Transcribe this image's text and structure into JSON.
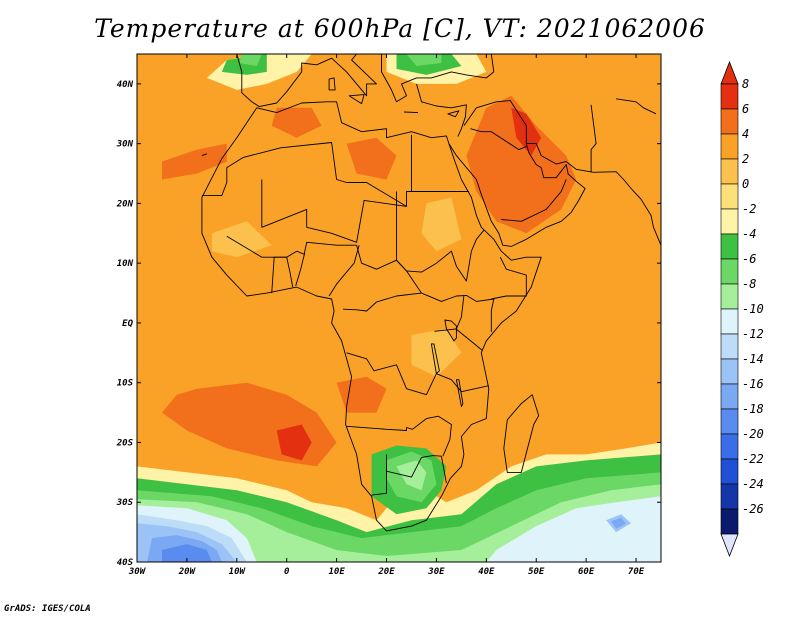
{
  "title": "Temperature at 600hPa [C], VT: 2021062006",
  "credit": "GrADS: IGES/COLA",
  "map": {
    "lon_range": [
      -30,
      75
    ],
    "lat_range": [
      -40,
      45
    ],
    "lon_ticks": [
      {
        "value": -30,
        "label": "30W"
      },
      {
        "value": -20,
        "label": "20W"
      },
      {
        "value": -10,
        "label": "10W"
      },
      {
        "value": 0,
        "label": "0"
      },
      {
        "value": 10,
        "label": "10E"
      },
      {
        "value": 20,
        "label": "20E"
      },
      {
        "value": 30,
        "label": "30E"
      },
      {
        "value": 40,
        "label": "40E"
      },
      {
        "value": 50,
        "label": "50E"
      },
      {
        "value": 60,
        "label": "60E"
      },
      {
        "value": 70,
        "label": "70E"
      }
    ],
    "lat_ticks": [
      {
        "value": 40,
        "label": "40N"
      },
      {
        "value": 30,
        "label": "30N"
      },
      {
        "value": 20,
        "label": "20N"
      },
      {
        "value": 10,
        "label": "10N"
      },
      {
        "value": 0,
        "label": "EQ"
      },
      {
        "value": -10,
        "label": "10S"
      },
      {
        "value": -20,
        "label": "20S"
      },
      {
        "value": -30,
        "label": "30S"
      },
      {
        "value": -40,
        "label": "40S"
      }
    ],
    "colors": {
      "c_m26": "#0a1a6e",
      "c_m24": "#1436a8",
      "c_m22": "#2050d6",
      "c_m20": "#3a6ee8",
      "c_m18": "#5a8cef",
      "c_m16": "#7aa8f2",
      "c_m14": "#9cc3f5",
      "c_m12": "#bcdcf8",
      "c_m10": "#dff3fb",
      "c_m8": "#a5ef9a",
      "c_m6": "#6bd765",
      "c_m4": "#3ec042",
      "c_m2": "#fff3a8",
      "c_0": "#fde07a",
      "c_2": "#fbc14c",
      "c_4": "#f9a227",
      "c_6": "#f2701b",
      "c_8": "#e23010"
    }
  },
  "colorbar": {
    "labels": [
      "8",
      "6",
      "4",
      "2",
      "0",
      "-2",
      "-4",
      "-6",
      "-8",
      "-10",
      "-12",
      "-14",
      "-16",
      "-18",
      "-20",
      "-22",
      "-24",
      "-26"
    ],
    "colors": [
      "#e23010",
      "#f2701b",
      "#f9a227",
      "#fbc14c",
      "#fde07a",
      "#fff3a8",
      "#3ec042",
      "#6bd765",
      "#a5ef9a",
      "#dff3fb",
      "#bcdcf8",
      "#9cc3f5",
      "#7aa8f2",
      "#5a8cef",
      "#3a6ee8",
      "#2050d6",
      "#1436a8",
      "#0a1a6e"
    ],
    "top_arrow_color": "#e23010",
    "bottom_arrow_color": "#e0e4ff"
  }
}
